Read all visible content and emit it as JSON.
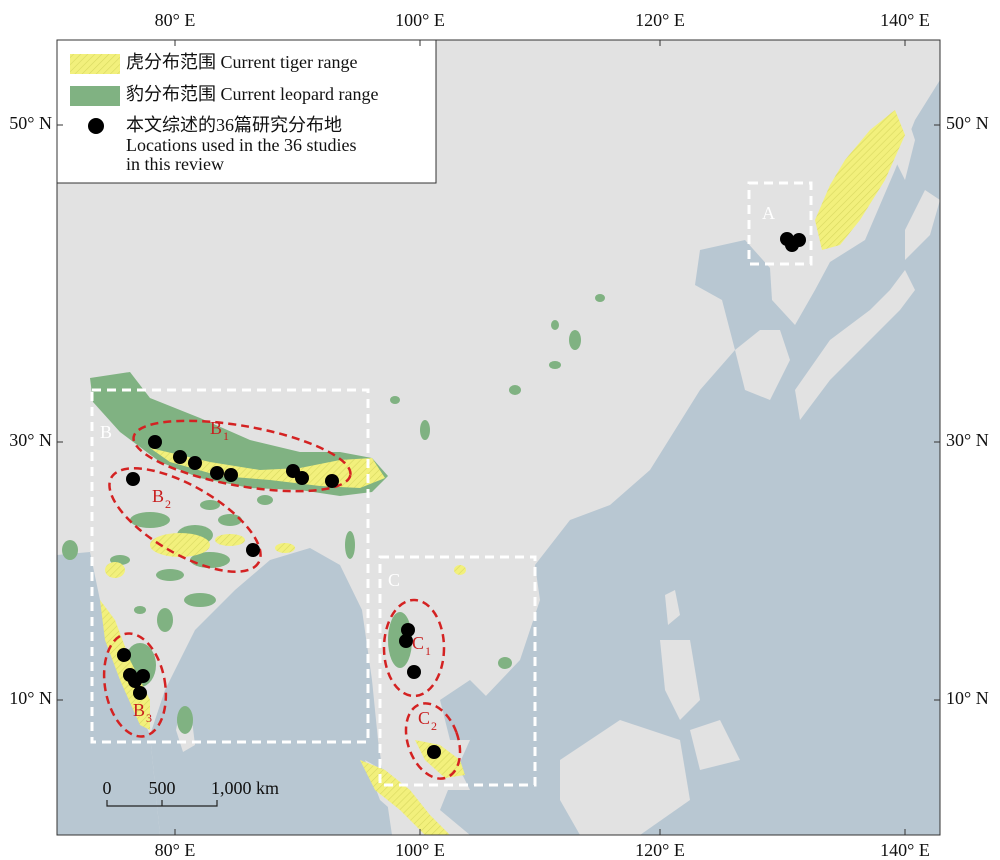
{
  "map": {
    "longitude_labels": [
      "80° E",
      "100° E",
      "120° E",
      "140° E"
    ],
    "latitude_labels": [
      "50° N",
      "30° N",
      "10° N"
    ],
    "legend": {
      "tiger": "虎分布范围 Current tiger range",
      "leopard": "豹分布范围 Current leopard range",
      "locations": [
        "本文综述的36篇研究分布地",
        "Locations used in the 36 studies",
        "in this review"
      ]
    },
    "regions": {
      "A": "A",
      "B": "B",
      "C": "C",
      "B1": {
        "letter": "B",
        "sub": "1"
      },
      "B2": {
        "letter": "B",
        "sub": "2"
      },
      "B3": {
        "letter": "B",
        "sub": "3"
      },
      "C1": {
        "letter": "C",
        "sub": "1"
      },
      "C2": {
        "letter": "C",
        "sub": "2"
      }
    },
    "scale_bar": [
      "0",
      "500",
      "1,000 km"
    ]
  }
}
